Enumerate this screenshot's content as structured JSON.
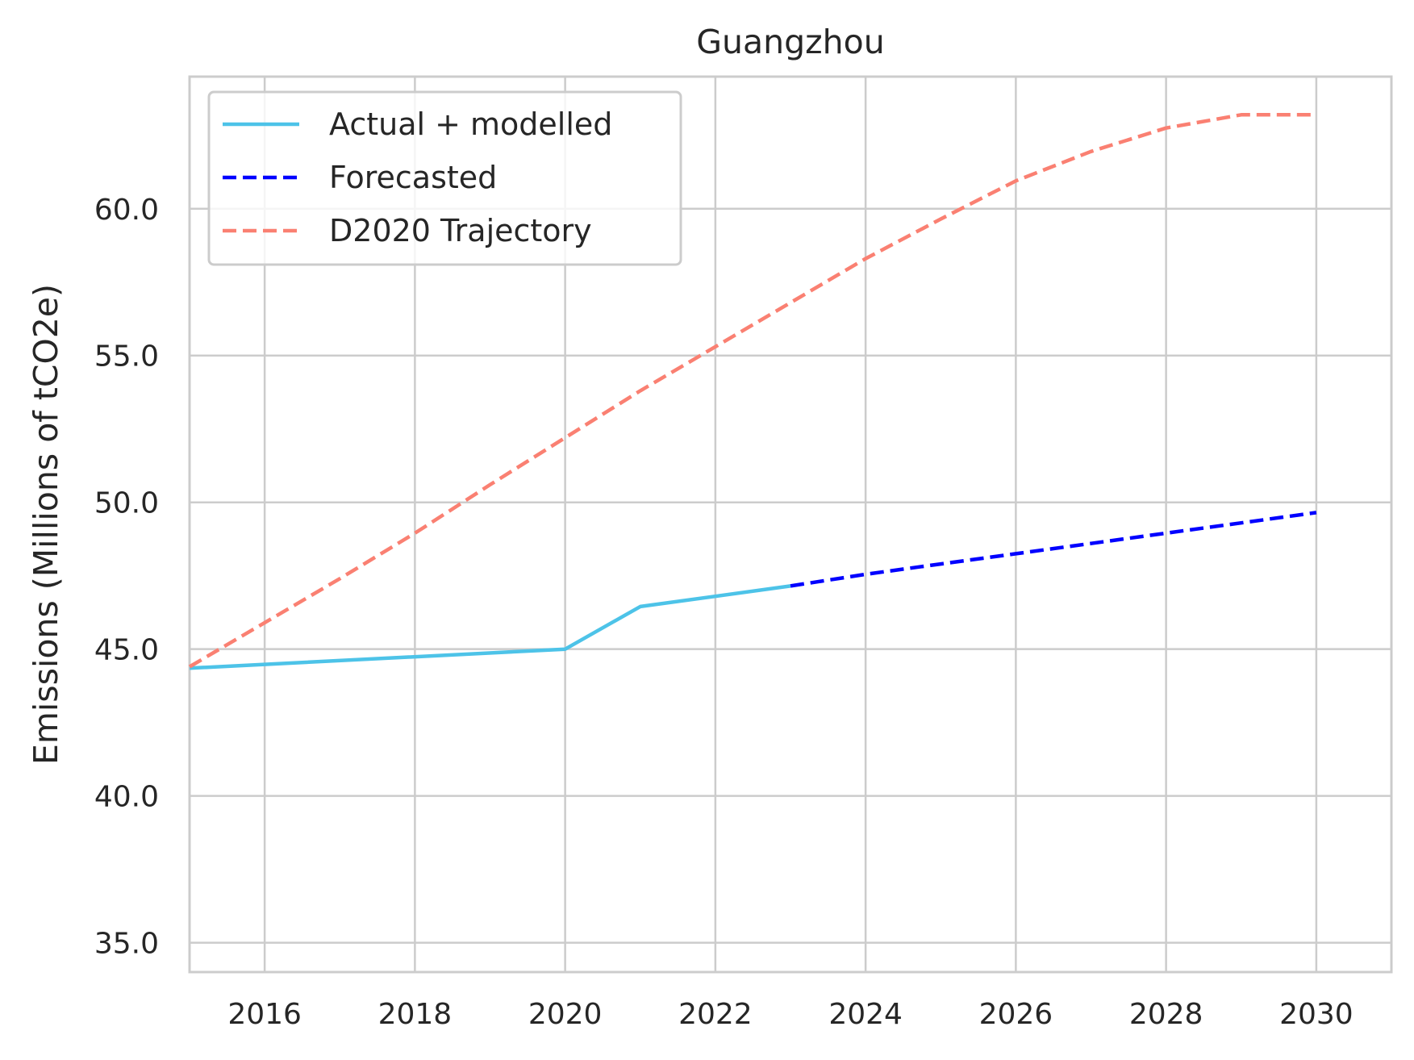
{
  "chart_data": {
    "type": "line",
    "title": "Guangzhou",
    "xlabel": "",
    "ylabel": "Emissions (Millions of tCO2e)",
    "xlim": [
      2015,
      2031
    ],
    "ylim": [
      34,
      64.5
    ],
    "x_ticks": [
      2016,
      2018,
      2020,
      2022,
      2024,
      2026,
      2028,
      2030
    ],
    "x_tick_labels": [
      "2016",
      "2018",
      "2020",
      "2022",
      "2024",
      "2026",
      "2028",
      "2030"
    ],
    "y_ticks": [
      35,
      40,
      45,
      50,
      55,
      60
    ],
    "y_tick_labels": [
      "35.0",
      "40.0",
      "45.0",
      "50.0",
      "55.0",
      "60.0"
    ],
    "grid": true,
    "legend_position": "top-left",
    "series": [
      {
        "name": "Actual + modelled",
        "color": "#4dc3e8",
        "style": "solid",
        "x": [
          2015,
          2020,
          2021,
          2023
        ],
        "y": [
          44.35,
          45.0,
          46.45,
          47.15
        ]
      },
      {
        "name": "Forecasted",
        "color": "#0000ff",
        "style": "dashed",
        "x": [
          2023,
          2024,
          2025,
          2026,
          2027,
          2028,
          2029,
          2030
        ],
        "y": [
          47.15,
          47.55,
          47.9,
          48.25,
          48.6,
          48.95,
          49.3,
          49.65
        ]
      },
      {
        "name": "D2020 Trajectory",
        "color": "#fa8072",
        "style": "dashed",
        "x": [
          2015,
          2016,
          2017,
          2018,
          2019,
          2020,
          2021,
          2022,
          2023,
          2024,
          2025,
          2026,
          2027,
          2028,
          2029,
          2030
        ],
        "y": [
          44.4,
          45.9,
          47.4,
          48.95,
          50.6,
          52.2,
          53.8,
          55.3,
          56.8,
          58.3,
          59.65,
          60.95,
          61.95,
          62.75,
          63.2,
          63.2
        ]
      }
    ]
  }
}
